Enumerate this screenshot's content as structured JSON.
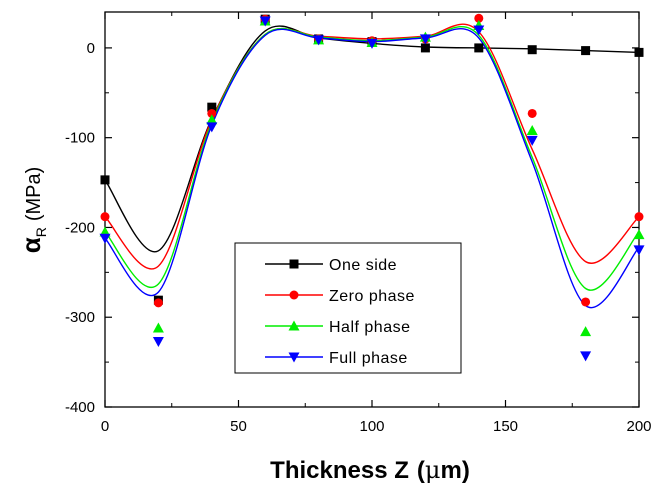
{
  "chart_data": {
    "type": "scatter",
    "xlabel": "Thickness Z (μm)",
    "xlabel_main": "Thickness Z",
    "xlabel_unit_open": "(",
    "xlabel_unit_mu": "μ",
    "xlabel_unit_rest": "m)",
    "ylabel": "αR (MPa)",
    "ylabel_alpha": "α",
    "ylabel_sub": "R",
    "ylabel_unit": "(MPa)",
    "xlim": [
      0,
      200
    ],
    "ylim": [
      -400,
      40
    ],
    "xticks": [
      0,
      50,
      100,
      150,
      200
    ],
    "yticks": [
      -400,
      -300,
      -200,
      -100,
      0
    ],
    "xtick_labels": [
      "0",
      "50",
      "100",
      "150",
      "200"
    ],
    "ytick_labels": [
      "-400",
      "-300",
      "-200",
      "-100",
      "0"
    ],
    "grid": false,
    "legend_position": "center-bottom",
    "series": [
      {
        "name": "One side",
        "color": "#000000",
        "marker": "square",
        "x": [
          0,
          20,
          40,
          60,
          80,
          100,
          120,
          140,
          160,
          180,
          200
        ],
        "points_y": [
          -147,
          -281,
          -66,
          32,
          10,
          7,
          0,
          0,
          -2,
          -3,
          -5
        ],
        "curve_y": [
          -147,
          -226,
          -79,
          19,
          11,
          5,
          1,
          0,
          -1,
          -3,
          -5
        ],
        "fit_type": "smooth-then-linear"
      },
      {
        "name": "Zero phase",
        "color": "#ff0000",
        "marker": "circle",
        "x": [
          0,
          20,
          40,
          60,
          80,
          100,
          120,
          140,
          160,
          180,
          200
        ],
        "points_y": [
          -188,
          -284,
          -73,
          32,
          10,
          8,
          10,
          33,
          -73,
          -283,
          -188
        ],
        "curve_y": [
          -188,
          -243,
          -80,
          15,
          13,
          10,
          13,
          18,
          -113,
          -238,
          -188
        ],
        "fit_type": "spline"
      },
      {
        "name": "Half phase",
        "color": "#00ee00",
        "marker": "triangle-up",
        "x": [
          0,
          20,
          40,
          60,
          80,
          100,
          120,
          140,
          160,
          180,
          200
        ],
        "points_y": [
          -205,
          -312,
          -80,
          30,
          9,
          6,
          12,
          25,
          -92,
          -316,
          -208
        ],
        "curve_y": [
          -205,
          -263,
          -83,
          15,
          12,
          8,
          12,
          14,
          -122,
          -268,
          -205
        ],
        "fit_type": "spline"
      },
      {
        "name": "Full phase",
        "color": "#0000ff",
        "marker": "triangle-down",
        "x": [
          0,
          20,
          40,
          60,
          80,
          100,
          120,
          140,
          160,
          180,
          200
        ],
        "points_y": [
          -212,
          -327,
          -88,
          30,
          9,
          5,
          10,
          20,
          -103,
          -343,
          -225
        ],
        "curve_y": [
          -212,
          -272,
          -86,
          14,
          11,
          7,
          11,
          11,
          -127,
          -287,
          -222
        ],
        "fit_type": "spline"
      }
    ]
  }
}
